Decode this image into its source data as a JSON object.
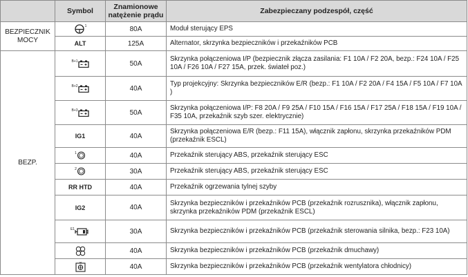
{
  "headers": {
    "symbol": "Symbol",
    "rating_line1": "Znamionowe",
    "rating_line2": "natężenie prądu",
    "component": "Zabezpieczany podzespół, część"
  },
  "groups": {
    "power_line1": "BEZPIECZNIK",
    "power_line2": "MOCY",
    "fuse": "BEZP."
  },
  "rows": [
    {
      "symbol_text": "",
      "symbol_icon": "steering-wheel-icon",
      "symbol_sup": "1",
      "rating": "80A",
      "desc": "Moduł sterujący EPS"
    },
    {
      "symbol_text": "ALT",
      "rating": "125A",
      "desc": "Alternator, skrzynka bezpieczników i przekaźników PCB"
    },
    {
      "symbol_sup": "B+1",
      "symbol_icon": "battery-icon",
      "rating": "50A",
      "desc": "Skrzynka połączeniowa I/P (bezpiecznik złącza zasilania: F1 10A / F2 20A, bezp.: F24 10A / F25 10A / F26 10A / F27 15A, przek. świateł poz.)"
    },
    {
      "symbol_sup": "B+2",
      "symbol_icon": "battery-icon",
      "rating": "40A",
      "desc": "Typ projekcyjny: Skrzynka bezpieczników E/R (bezp.: F1 10A / F2 20A / F4 15A / F5 10A / F7 10A )"
    },
    {
      "symbol_sup": "B+3",
      "symbol_icon": "battery-icon",
      "rating": "50A",
      "desc": "Skrzynka połączeniowa I/P: F8 20A / F9 25A / F10 15A /  F16 15A / F17 25A / F18 15A / F19 10A / F35 10A, przekaźnik szyb szer. elektrycznie)"
    },
    {
      "symbol_text": "IG1",
      "rating": "40A",
      "desc": "Skrzynka połączeniowa E/R (bezp.: F11 15A), włącznik zapłonu, skrzynka przekaźników PDM (przekaźnik ESCL)"
    },
    {
      "symbol_sup": "1",
      "symbol_icon": "abs-icon",
      "rating": "40A",
      "desc": "Przekaźnik sterujący ABS, przekaźnik sterujący ESC"
    },
    {
      "symbol_sup": "2",
      "symbol_icon": "abs-icon",
      "rating": "30A",
      "desc": "Przekaźnik sterujący ABS, przekaźnik sterujący ESC"
    },
    {
      "symbol_text": "RR HTD",
      "rating": "40A",
      "desc": "Przekaźnik ogrzewania tylnej szyby"
    },
    {
      "symbol_text": "IG2",
      "rating": "40A",
      "desc": "Skrzynka bezpieczników i przekaźników PCB (przekaźnik rozrusznika), włącznik zapłonu, skrzynka przekaźników PDM (przekaźnik ESCL)"
    },
    {
      "symbol_sup": "E1",
      "symbol_icon": "engine-icon",
      "rating": "30A",
      "desc": "Skrzynka bezpieczników i przekaźników PCB (przekaźnik sterowania silnika, bezp.: F23 10A)"
    },
    {
      "symbol_icon": "fan-icon",
      "rating": "40A",
      "desc": "Skrzynka bezpieczników i przekaźników PCB (przekaźnik dmuchawy)"
    },
    {
      "symbol_icon": "cooling-fan-icon",
      "rating": "40A",
      "desc": "Skrzynka bezpieczników i przekaźników PCB (przekaźnik wentylatora chłodnicy)"
    }
  ]
}
